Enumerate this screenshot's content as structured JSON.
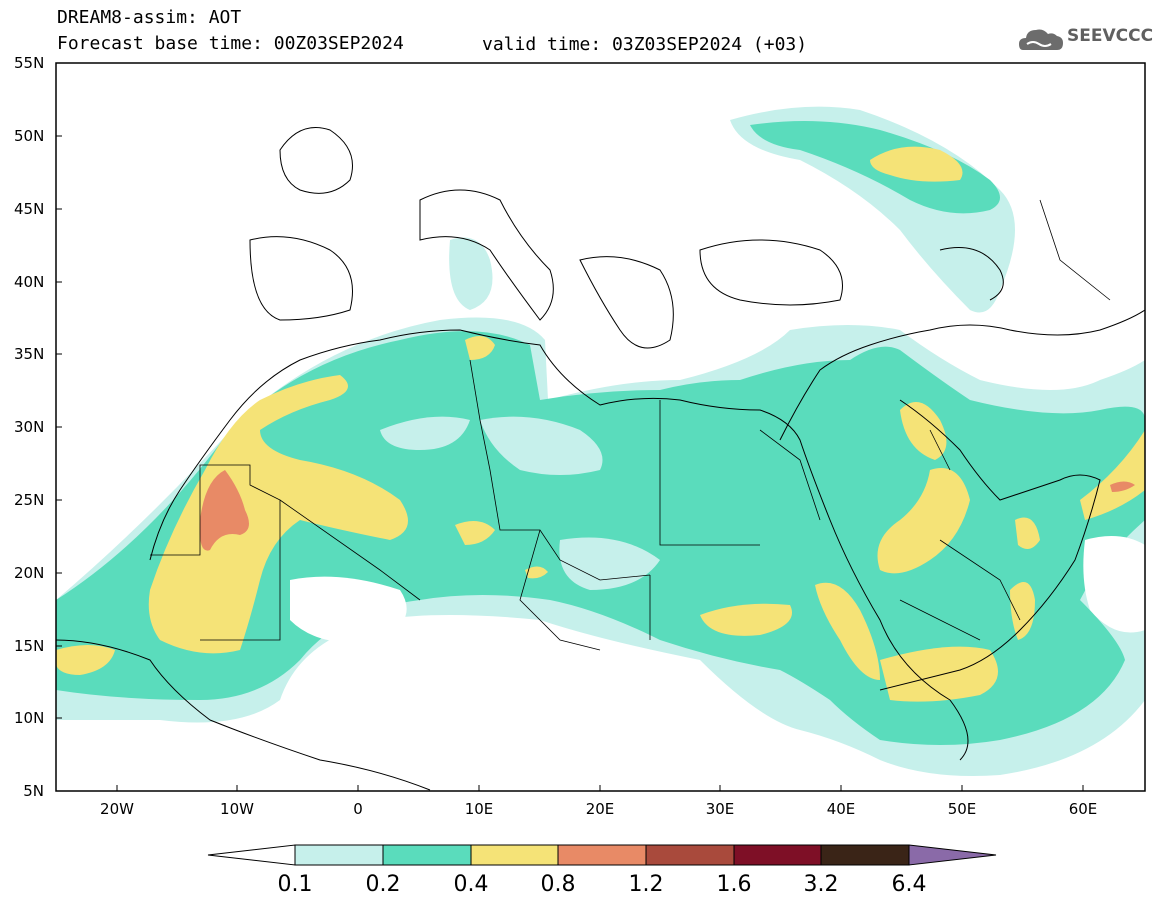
{
  "header": {
    "line1": "DREAM8-assim: AOT",
    "line2": "Forecast base time: 00Z03SEP2024",
    "valid": "valid time: 03Z03SEP2024 (+03)"
  },
  "logo": {
    "text": "SEEVCCC",
    "icon": "cloud-icon"
  },
  "axes": {
    "lat_labels": [
      "55N",
      "50N",
      "45N",
      "40N",
      "35N",
      "30N",
      "25N",
      "20N",
      "15N",
      "10N",
      "5N"
    ],
    "lon_labels": [
      "20W",
      "10W",
      "0",
      "10E",
      "20E",
      "30E",
      "40E",
      "50E",
      "60E"
    ]
  },
  "legend": {
    "ticks": [
      "0.1",
      "0.2",
      "0.4",
      "0.8",
      "1.2",
      "1.6",
      "3.2",
      "6.4"
    ],
    "colors": [
      "#ffffff",
      "#c6f0eb",
      "#5adcbc",
      "#f5e377",
      "#e88a66",
      "#a94a3c",
      "#7e0f26",
      "#3a2417",
      "#8a6aa8"
    ]
  },
  "map": {
    "variable": "AOT",
    "lon_range": [
      -25,
      65
    ],
    "lat_range": [
      5,
      55
    ]
  }
}
